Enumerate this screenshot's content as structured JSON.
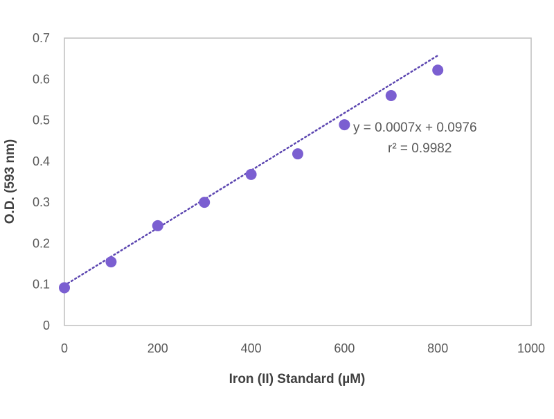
{
  "chart_data": {
    "type": "scatter",
    "xlabel": "Iron (II) Standard  (µM)",
    "ylabel": "O.D. (593 nm)",
    "xlim": [
      0,
      1000
    ],
    "ylim": [
      0,
      0.7
    ],
    "x_ticks": [
      0,
      200,
      400,
      600,
      800,
      1000
    ],
    "y_ticks": [
      0,
      0.1,
      0.2,
      0.3,
      0.4,
      0.5,
      0.6,
      0.7
    ],
    "x_tick_labels": [
      "0",
      "200",
      "400",
      "600",
      "800",
      "1000"
    ],
    "y_tick_labels": [
      "0",
      "0.1",
      "0.2",
      "0.3",
      "0.4",
      "0.5",
      "0.6",
      "0.7"
    ],
    "grid": false,
    "legend": "none",
    "series": [
      {
        "x": [
          0,
          100,
          200,
          300,
          400,
          500,
          600,
          700,
          800
        ],
        "y": [
          0.092,
          0.155,
          0.243,
          0.3,
          0.368,
          0.418,
          0.489,
          0.56,
          0.622
        ],
        "color": "#7b5fd1"
      }
    ],
    "trendline": {
      "style": "dotted",
      "color": "#5b45b0",
      "slope": 0.0007,
      "intercept": 0.0976,
      "x_range": [
        0,
        800
      ]
    },
    "annotations": {
      "equation": "y = 0.0007x + 0.0976",
      "r_squared": "r² = 0.9982"
    }
  }
}
